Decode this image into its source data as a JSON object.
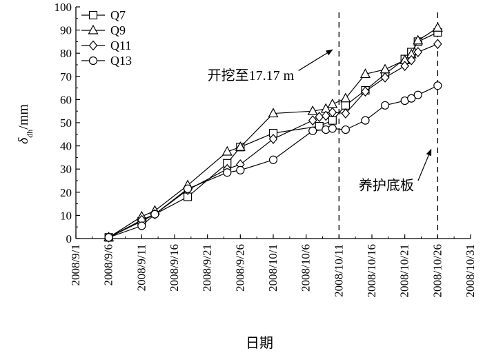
{
  "chart_data": {
    "type": "line",
    "xlabel": "日期",
    "ylabel": "δdh/mm",
    "ylabel_main": "δ",
    "ylabel_sub": "dh",
    "ylabel_unit": "/mm",
    "ylim": [
      0,
      100
    ],
    "xlim": [
      "2008-09-01",
      "2008-10-31"
    ],
    "yticks": [
      0,
      10,
      20,
      30,
      40,
      50,
      60,
      70,
      80,
      90,
      100
    ],
    "xticks": [
      "2008-09-01",
      "2008-09-06",
      "2008-09-11",
      "2008-09-16",
      "2008-09-21",
      "2008-09-26",
      "2008-10-01",
      "2008-10-06",
      "2008-10-11",
      "2008-10-16",
      "2008-10-21",
      "2008-10-26",
      "2008-10-31"
    ],
    "xtick_labels": [
      "2008/9/1",
      "2008/9/6",
      "2008/9/11",
      "2008/9/16",
      "2008/9/21",
      "2008/9/26",
      "2008/10/1",
      "2008/10/6",
      "2008/10/11",
      "2008/10/16",
      "2008/10/21",
      "2008/10/26",
      "2008/10/31"
    ],
    "legend_position": "top-left",
    "series": [
      {
        "name": "Q7",
        "marker": "square",
        "x": [
          "2008-09-06",
          "2008-09-11",
          "2008-09-18",
          "2008-09-24",
          "2008-09-26",
          "2008-10-01",
          "2008-10-08",
          "2008-10-10",
          "2008-10-12",
          "2008-10-15",
          "2008-10-18",
          "2008-10-21",
          "2008-10-22",
          "2008-10-23",
          "2008-10-26"
        ],
        "y": [
          0.5,
          7.5,
          18,
          32.5,
          39.5,
          45.5,
          48.5,
          51,
          57.5,
          64,
          71,
          77.5,
          80.5,
          85,
          89
        ]
      },
      {
        "name": "Q9",
        "marker": "triangle",
        "x": [
          "2008-09-06",
          "2008-09-11",
          "2008-09-13",
          "2008-09-18",
          "2008-09-24",
          "2008-09-26",
          "2008-10-01",
          "2008-10-07",
          "2008-10-09",
          "2008-10-10",
          "2008-10-12",
          "2008-10-15",
          "2008-10-18",
          "2008-10-21",
          "2008-10-22",
          "2008-10-23",
          "2008-10-26"
        ],
        "y": [
          0.5,
          9.5,
          12,
          23,
          37.5,
          39.5,
          54,
          55,
          56,
          58,
          60.5,
          71,
          73,
          77,
          79.5,
          85.5,
          91
        ]
      },
      {
        "name": "Q11",
        "marker": "diamond",
        "x": [
          "2008-09-06",
          "2008-09-11",
          "2008-09-13",
          "2008-09-18",
          "2008-09-24",
          "2008-09-26",
          "2008-10-01",
          "2008-10-07",
          "2008-10-08",
          "2008-10-09",
          "2008-10-10",
          "2008-10-12",
          "2008-10-15",
          "2008-10-18",
          "2008-10-21",
          "2008-10-22",
          "2008-10-23",
          "2008-10-26"
        ],
        "y": [
          0.5,
          8,
          10.5,
          21,
          30,
          32,
          43,
          51,
          52.5,
          53,
          54.5,
          54,
          63.5,
          69.5,
          74.5,
          77,
          80.5,
          84
        ]
      },
      {
        "name": "Q13",
        "marker": "circle",
        "x": [
          "2008-09-06",
          "2008-09-11",
          "2008-09-13",
          "2008-09-18",
          "2008-09-24",
          "2008-09-26",
          "2008-10-01",
          "2008-10-07",
          "2008-10-09",
          "2008-10-10",
          "2008-10-12",
          "2008-10-15",
          "2008-10-18",
          "2008-10-21",
          "2008-10-22",
          "2008-10-23",
          "2008-10-26"
        ],
        "y": [
          0.5,
          5.5,
          10.5,
          21.5,
          28.5,
          29.5,
          34,
          46.5,
          47,
          47.5,
          47,
          51,
          57.5,
          59.5,
          60.5,
          62,
          66
        ]
      }
    ],
    "vlines": [
      "2008-10-11",
      "2008-10-26"
    ],
    "annotations": [
      {
        "text": "开挖至17.17 m",
        "anchor_x": "2008-09-21",
        "anchor_y": 68.5,
        "arrow_to_x": "2008-10-10",
        "arrow_to_y": 81.5
      },
      {
        "text": "养护底板",
        "anchor_x": "2008-10-14",
        "anchor_y": 21,
        "arrow_to_x": "2008-10-25",
        "arrow_to_y": 38.5
      }
    ],
    "grid": false
  }
}
